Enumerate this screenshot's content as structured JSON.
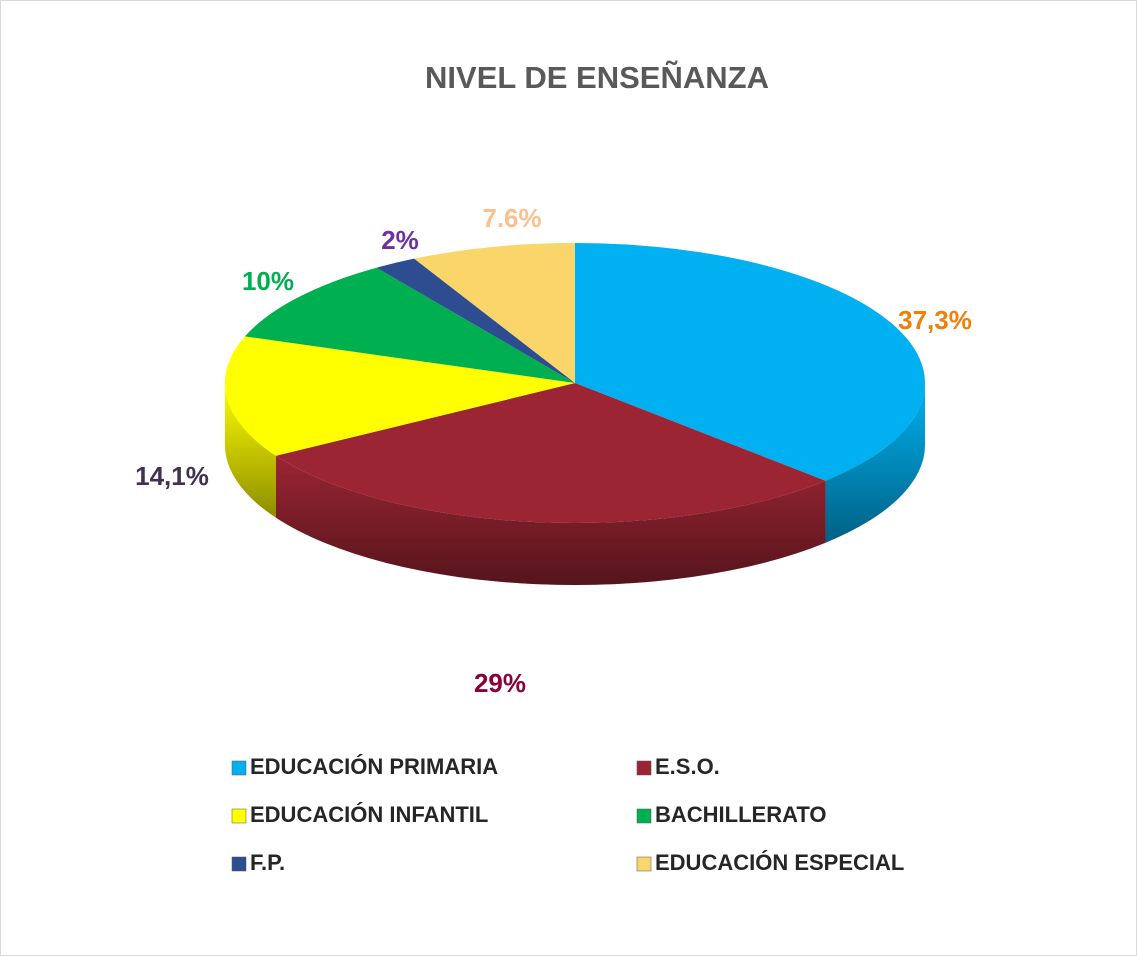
{
  "chart_data": {
    "type": "pie",
    "title": "NIVEL DE ENSEÑANZA",
    "categories": [
      "EDUCACIÓN PRIMARIA",
      "E.S.O.",
      "EDUCACIÓN INFANTIL",
      "BACHILLERATO",
      "F.P.",
      "EDUCACIÓN ESPECIAL"
    ],
    "values": [
      37.3,
      29,
      14.1,
      10,
      2,
      7.6
    ],
    "value_labels": [
      "37,3%",
      "29%",
      "14,1%",
      "10%",
      "2%",
      "7.6%"
    ],
    "colors": [
      "#00b0f0",
      "#9b2533",
      "#ffff00",
      "#00b050",
      "#2e4d91",
      "#fad56a"
    ],
    "label_colors": [
      "#f07f09",
      "#8b0038",
      "#403152",
      "#00b050",
      "#7030a0",
      "#fac090"
    ]
  }
}
